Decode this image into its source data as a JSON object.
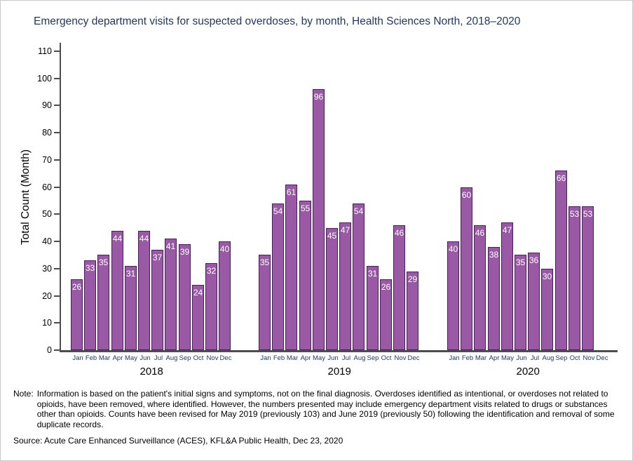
{
  "title": "Emergency department visits for suspected overdoses, by month, Health Sciences North, 2018–2020",
  "chart_data": {
    "type": "bar",
    "title": "Emergency department visits for suspected overdoses, by month, Health Sciences North, 2018–2020",
    "xlabel": "",
    "ylabel": "Total Count (Month)",
    "ylim": [
      0,
      110
    ],
    "ytick_step": 10,
    "grid": false,
    "legend_position": "none",
    "bar_value_labels_shown": true,
    "categories": [
      "Jan",
      "Feb",
      "Mar",
      "Apr",
      "May",
      "Jun",
      "Jul",
      "Aug",
      "Sep",
      "Oct",
      "Nov",
      "Dec"
    ],
    "series": [
      {
        "name": "2018",
        "values": [
          26,
          33,
          35,
          44,
          31,
          44,
          37,
          41,
          39,
          24,
          32,
          40
        ]
      },
      {
        "name": "2019",
        "values": [
          35,
          54,
          61,
          55,
          96,
          45,
          47,
          54,
          31,
          26,
          46,
          29
        ]
      },
      {
        "name": "2020",
        "values": [
          40,
          60,
          46,
          38,
          47,
          35,
          36,
          30,
          66,
          53,
          53,
          null
        ]
      }
    ]
  },
  "note": {
    "label": "Note:",
    "text": "Information is based on the patient's initial signs and symptoms, not on the final diagnosis. Overdoses identified as intentional, or overdoses not related to opioids, have been removed, where identified. However, the numbers presented may include emergency department visits related to drugs or substances other than opioids. Counts have been revised for May 2019 (previously 103) and June 2019 (previously 50) following the identification and removal of some duplicate records."
  },
  "source": "Source: Acute Care Enhanced Surveillance (ACES), KFL&A Public Health, Dec 23, 2020",
  "colors": {
    "title_text": "#1F3864",
    "month_label": "#1F3864",
    "year_label": "#000000",
    "tick_label": "#000000",
    "axis": "#4D4D4D",
    "bar_fill": "#9959A5",
    "bar_border": "#4A1D5E",
    "bar_value_label": "#FFFFFF",
    "body_text": "#000000"
  }
}
